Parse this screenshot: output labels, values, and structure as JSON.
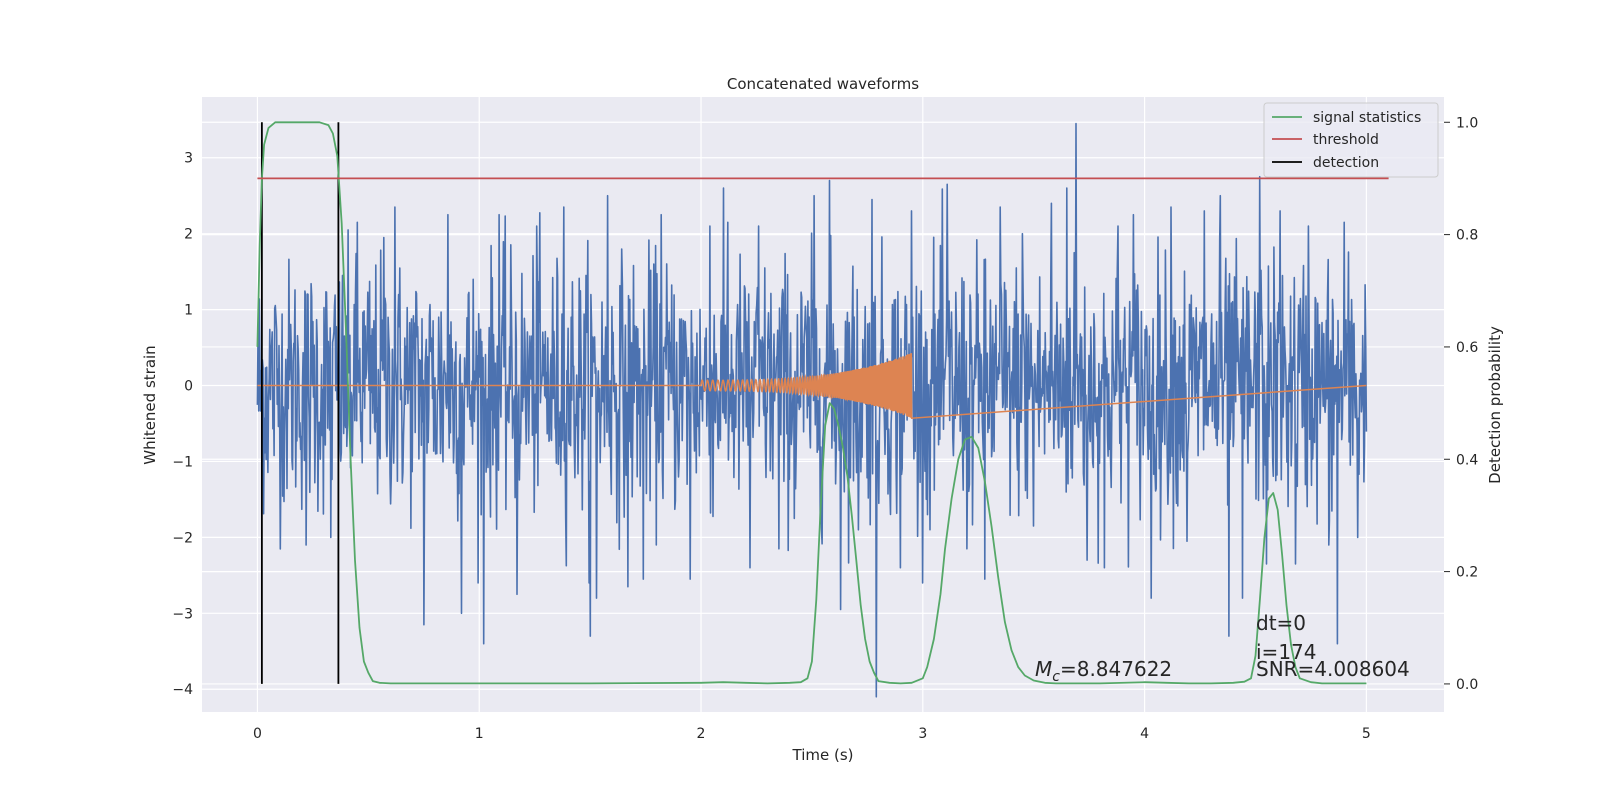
{
  "chart_data": {
    "type": "line",
    "title": "Concatenated waveforms",
    "xlabel": "Time (s)",
    "ylabel": "Whitened strain",
    "y2label": "Detection probability",
    "xlim": [
      -0.25,
      5.35
    ],
    "ylim": [
      -4.3,
      3.8
    ],
    "y2lim": [
      -0.05,
      1.045
    ],
    "xticks": [
      0,
      1,
      2,
      3,
      4,
      5
    ],
    "yticks": [
      -4,
      -3,
      -2,
      -1,
      0,
      1,
      2,
      3
    ],
    "y2ticks": [
      0.0,
      0.2,
      0.4,
      0.6,
      0.8,
      1.0
    ],
    "grid": true,
    "legend_position": "upper right",
    "colors": {
      "background": "#eaeaf2",
      "grid": "#ffffff",
      "noise": "#4c72b0",
      "injection": "#dd8452",
      "signal_statistics": "#55a868",
      "threshold": "#c44e52",
      "detection": "#000000"
    },
    "series": [
      {
        "key": "noise",
        "axis": "left",
        "style": "noise",
        "x_range": [
          0,
          5
        ],
        "sigma": 0.82,
        "spikes": [
          [
            0.22,
            -2.1
          ],
          [
            0.33,
            -2.0
          ],
          [
            0.45,
            2.15
          ],
          [
            0.57,
            1.95
          ],
          [
            0.62,
            2.35
          ],
          [
            0.75,
            -3.15
          ],
          [
            0.86,
            2.25
          ],
          [
            0.92,
            -3.0
          ],
          [
            1.02,
            -3.4
          ],
          [
            1.09,
            2.25
          ],
          [
            1.17,
            -2.75
          ],
          [
            1.26,
            2.1
          ],
          [
            1.38,
            2.35
          ],
          [
            1.5,
            -3.3
          ],
          [
            1.53,
            -2.8
          ],
          [
            1.58,
            2.5
          ],
          [
            1.67,
            -2.65
          ],
          [
            1.74,
            -2.55
          ],
          [
            1.82,
            2.25
          ],
          [
            1.95,
            -2.55
          ],
          [
            2.04,
            2.1
          ],
          [
            2.12,
            2.15
          ],
          [
            2.22,
            -2.4
          ],
          [
            2.26,
            2.1
          ],
          [
            2.35,
            -2.15
          ],
          [
            2.42,
            -1.75
          ],
          [
            2.51,
            2.5
          ],
          [
            2.58,
            2.7
          ],
          [
            2.63,
            -2.95
          ],
          [
            2.71,
            -1.9
          ],
          [
            2.77,
            2.45
          ],
          [
            2.79,
            -4.1
          ],
          [
            2.9,
            -2.4
          ],
          [
            2.95,
            2.3
          ],
          [
            3.02,
            -1.7
          ],
          [
            3.11,
            2.65
          ],
          [
            3.2,
            -2.15
          ],
          [
            3.28,
            -2.55
          ],
          [
            3.35,
            2.35
          ],
          [
            3.45,
            2.0
          ],
          [
            3.5,
            -1.85
          ],
          [
            3.58,
            2.4
          ],
          [
            3.65,
            2.6
          ],
          [
            3.69,
            3.45
          ],
          [
            3.74,
            -2.3
          ],
          [
            3.82,
            -2.4
          ],
          [
            3.88,
            2.1
          ],
          [
            3.95,
            2.25
          ],
          [
            4.03,
            -2.8
          ],
          [
            4.12,
            2.35
          ],
          [
            4.19,
            -2.05
          ],
          [
            4.27,
            2.3
          ],
          [
            4.34,
            2.5
          ],
          [
            4.38,
            -3.3
          ],
          [
            4.44,
            -2.8
          ],
          [
            4.52,
            2.75
          ],
          [
            4.55,
            -2.35
          ],
          [
            4.61,
            2.3
          ],
          [
            4.68,
            -2.35
          ],
          [
            4.74,
            2.1
          ],
          [
            4.83,
            -2.1
          ],
          [
            4.87,
            -3.4
          ],
          [
            4.9,
            2.15
          ],
          [
            4.96,
            -2.0
          ]
        ]
      },
      {
        "key": "injection",
        "axis": "left",
        "style": "chirp",
        "x_range": [
          0,
          5
        ],
        "chirp": {
          "start": 2.0,
          "end": 2.95,
          "amp_start": 0.07,
          "amp_end": 0.43,
          "freq_start": 42,
          "freq_end": 250
        }
      },
      {
        "key": "signal_statistics",
        "axis": "right",
        "name": "signal statistics",
        "x": [
          0.0,
          0.01,
          0.02,
          0.03,
          0.05,
          0.08,
          0.12,
          0.2,
          0.28,
          0.32,
          0.34,
          0.36,
          0.38,
          0.4,
          0.42,
          0.44,
          0.46,
          0.48,
          0.5,
          0.52,
          0.55,
          0.6,
          1.0,
          1.5,
          2.0,
          2.1,
          2.2,
          2.3,
          2.4,
          2.45,
          2.48,
          2.5,
          2.52,
          2.54,
          2.56,
          2.58,
          2.6,
          2.62,
          2.64,
          2.66,
          2.68,
          2.7,
          2.72,
          2.74,
          2.76,
          2.78,
          2.8,
          2.85,
          2.9,
          2.95,
          3.0,
          3.02,
          3.05,
          3.08,
          3.1,
          3.13,
          3.16,
          3.19,
          3.22,
          3.25,
          3.28,
          3.31,
          3.34,
          3.37,
          3.4,
          3.43,
          3.46,
          3.5,
          3.55,
          3.6,
          3.8,
          4.0,
          4.1,
          4.2,
          4.3,
          4.4,
          4.45,
          4.48,
          4.5,
          4.52,
          4.54,
          4.56,
          4.58,
          4.6,
          4.62,
          4.64,
          4.66,
          4.68,
          4.7,
          4.75,
          4.8,
          5.0
        ],
        "values": [
          0.6,
          0.78,
          0.9,
          0.96,
          0.99,
          1.0,
          1.0,
          1.0,
          1.0,
          0.995,
          0.98,
          0.94,
          0.82,
          0.62,
          0.4,
          0.22,
          0.1,
          0.04,
          0.02,
          0.005,
          0.002,
          0.001,
          0.001,
          0.001,
          0.002,
          0.003,
          0.002,
          0.001,
          0.002,
          0.003,
          0.01,
          0.04,
          0.15,
          0.32,
          0.46,
          0.5,
          0.49,
          0.46,
          0.42,
          0.37,
          0.3,
          0.22,
          0.14,
          0.08,
          0.04,
          0.02,
          0.005,
          0.002,
          0.001,
          0.002,
          0.01,
          0.03,
          0.08,
          0.16,
          0.24,
          0.33,
          0.4,
          0.435,
          0.44,
          0.42,
          0.36,
          0.28,
          0.19,
          0.11,
          0.06,
          0.03,
          0.015,
          0.006,
          0.002,
          0.001,
          0.001,
          0.003,
          0.002,
          0.001,
          0.001,
          0.002,
          0.004,
          0.01,
          0.05,
          0.15,
          0.26,
          0.33,
          0.34,
          0.31,
          0.23,
          0.14,
          0.07,
          0.03,
          0.01,
          0.003,
          0.001,
          0.001
        ]
      },
      {
        "key": "threshold",
        "axis": "right",
        "name": "threshold",
        "x": [
          0.0,
          5.1
        ],
        "values": [
          0.9,
          0.9
        ]
      }
    ],
    "detections": {
      "name": "detection",
      "x": [
        0.02,
        0.365
      ],
      "y_range": [
        0.0,
        1.0
      ]
    },
    "legend": [
      "signal statistics",
      "threshold",
      "detection"
    ],
    "annotations": {
      "dt": "dt=0",
      "i": "i=174",
      "snr": "SNR=4.008604",
      "mc": "=8.847622",
      "mc_symbol": "M",
      "mc_subscript": "c"
    }
  }
}
